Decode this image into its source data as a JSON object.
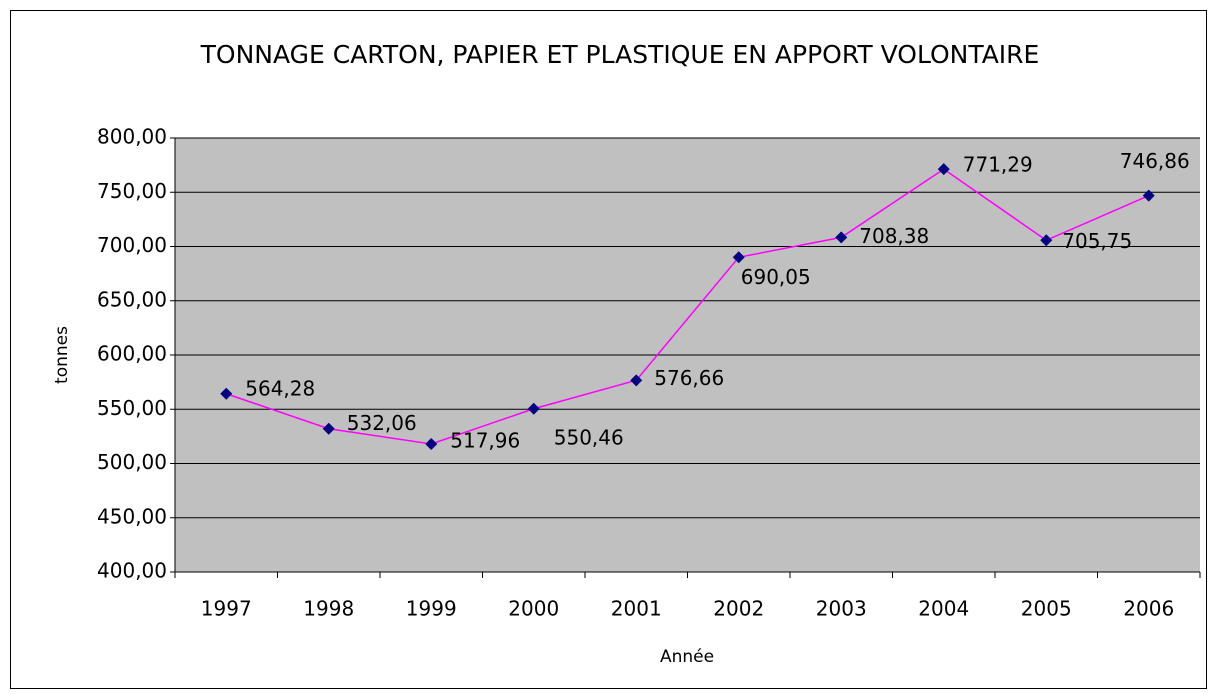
{
  "chart_data": {
    "type": "line",
    "title": "TONNAGE CARTON, PAPIER ET PLASTIQUE EN APPORT VOLONTAIRE",
    "x_label": "Année",
    "y_label": "tonnes",
    "categories": [
      "1997",
      "1998",
      "1999",
      "2000",
      "2001",
      "2002",
      "2003",
      "2004",
      "2005",
      "2006"
    ],
    "values": [
      564.28,
      532.06,
      517.96,
      550.46,
      576.66,
      690.05,
      708.38,
      771.29,
      705.75,
      746.86
    ],
    "value_labels": [
      "564,28",
      "532,06",
      "517,96",
      "550,46",
      "576,66",
      "690,05",
      "708,38",
      "771,29",
      "705,75",
      "746,86"
    ],
    "color": "#ff00ff",
    "marker_color": "#000080",
    "plot_background": "#c0c0c0",
    "ylim": [
      400,
      800
    ],
    "yticks": [
      {
        "value": 400,
        "label": "400,00"
      },
      {
        "value": 450,
        "label": "450,00"
      },
      {
        "value": 500,
        "label": "500,00"
      },
      {
        "value": 550,
        "label": "550,00"
      },
      {
        "value": 600,
        "label": "600,00"
      },
      {
        "value": 650,
        "label": "650,00"
      },
      {
        "value": 700,
        "label": "700,00"
      },
      {
        "value": 750,
        "label": "750,00"
      },
      {
        "value": 800,
        "label": "800,00"
      }
    ],
    "grid": true
  }
}
